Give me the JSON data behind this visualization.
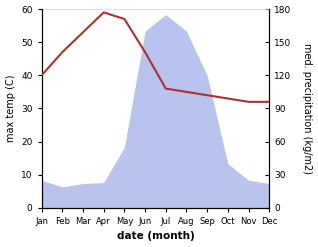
{
  "months": [
    "Jan",
    "Feb",
    "Mar",
    "Apr",
    "May",
    "Jun",
    "Jul",
    "Aug",
    "Sep",
    "Oct",
    "Nov",
    "Dec"
  ],
  "temperature": [
    40,
    47,
    53,
    59,
    57,
    47,
    36,
    35,
    34,
    33,
    32,
    32
  ],
  "precipitation": [
    25,
    19,
    22,
    23,
    55,
    160,
    175,
    160,
    120,
    40,
    25,
    22
  ],
  "temp_color": "#b03030",
  "precip_color": "#b8c4ee",
  "title": "",
  "xlabel": "date (month)",
  "ylabel_left": "max temp (C)",
  "ylabel_right": "med. precipitation (kg/m2)",
  "ylim_left": [
    0,
    60
  ],
  "ylim_right": [
    0,
    60
  ],
  "precip_scale_max": 180,
  "yticks_left": [
    0,
    10,
    20,
    30,
    40,
    50,
    60
  ],
  "yticks_right": [
    0,
    10,
    20,
    30,
    40,
    50,
    60
  ],
  "bg_color": "#ffffff",
  "fig_bg_color": "#ffffff",
  "figsize": [
    3.18,
    2.47
  ],
  "dpi": 100
}
